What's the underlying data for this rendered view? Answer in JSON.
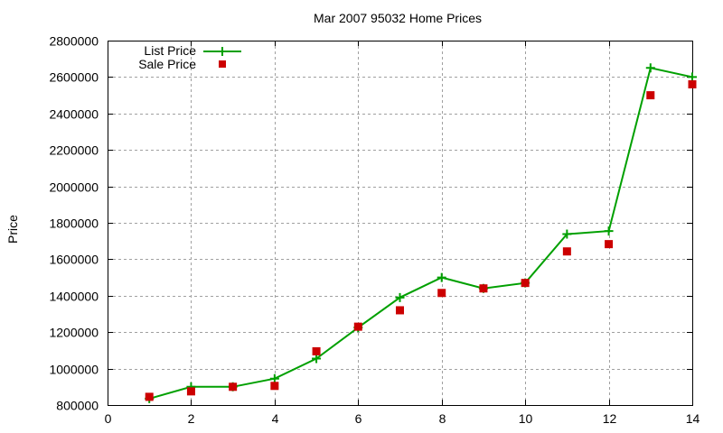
{
  "chart_data": {
    "type": "line",
    "title": "Mar 2007 95032 Home Prices",
    "xlabel": "",
    "ylabel": "Price",
    "xlim": [
      0,
      14
    ],
    "ylim": [
      800000,
      2800000
    ],
    "xticks": [
      0,
      2,
      4,
      6,
      8,
      10,
      12,
      14
    ],
    "yticks": [
      800000,
      1000000,
      1200000,
      1400000,
      1600000,
      1800000,
      2000000,
      2200000,
      2400000,
      2600000,
      2800000
    ],
    "grid": true,
    "legend_position": "top-left",
    "x": [
      1,
      2,
      3,
      4,
      5,
      6,
      7,
      8,
      9,
      10,
      11,
      12,
      13,
      14
    ],
    "series": [
      {
        "name": "List Price",
        "style": "lines+points (plus markers)",
        "color": "#00a000",
        "values": [
          835000,
          900000,
          900000,
          945000,
          1055000,
          1225000,
          1390000,
          1500000,
          1440000,
          1470000,
          1738000,
          1755000,
          2650000,
          2600000
        ]
      },
      {
        "name": "Sale Price",
        "style": "points (filled squares)",
        "color": "#cc0000",
        "values": [
          845000,
          875000,
          900000,
          905000,
          1095000,
          1230000,
          1320000,
          1415000,
          1440000,
          1470000,
          1643000,
          1683000,
          2500000,
          2560000
        ]
      }
    ]
  },
  "labels": {
    "title": "Mar 2007 95032 Home Prices",
    "ylabel": "Price",
    "legend_list": "List Price",
    "legend_sale": "Sale Price"
  }
}
